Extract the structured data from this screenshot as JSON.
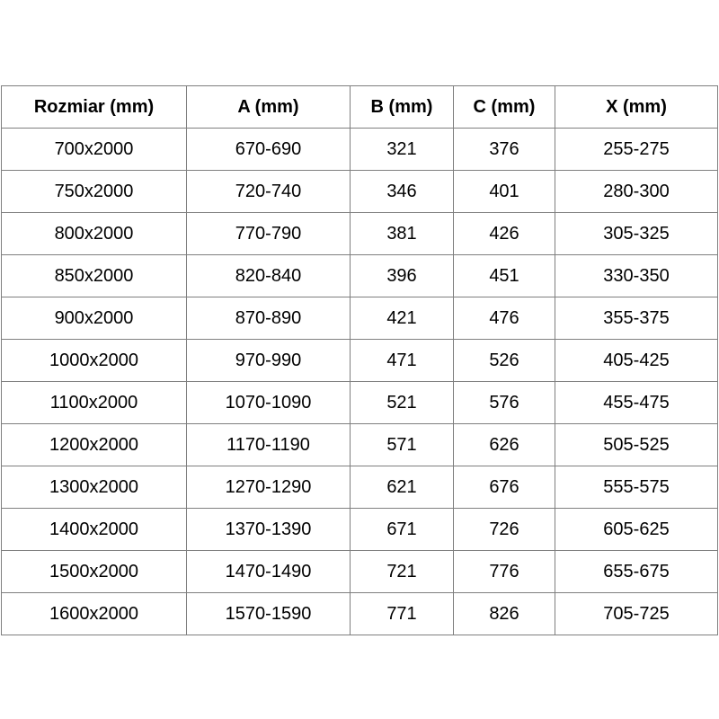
{
  "table": {
    "columns": [
      "Rozmiar (mm)",
      "A (mm)",
      "B (mm)",
      "C (mm)",
      "X (mm)"
    ],
    "rows": [
      [
        "700x2000",
        "670-690",
        "321",
        "376",
        "255-275"
      ],
      [
        "750x2000",
        "720-740",
        "346",
        "401",
        "280-300"
      ],
      [
        "800x2000",
        "770-790",
        "381",
        "426",
        "305-325"
      ],
      [
        "850x2000",
        "820-840",
        "396",
        "451",
        "330-350"
      ],
      [
        "900x2000",
        "870-890",
        "421",
        "476",
        "355-375"
      ],
      [
        "1000x2000",
        "970-990",
        "471",
        "526",
        "405-425"
      ],
      [
        "1100x2000",
        "1070-1090",
        "521",
        "576",
        "455-475"
      ],
      [
        "1200x2000",
        "1170-1190",
        "571",
        "626",
        "505-525"
      ],
      [
        "1300x2000",
        "1270-1290",
        "621",
        "676",
        "555-575"
      ],
      [
        "1400x2000",
        "1370-1390",
        "671",
        "726",
        "605-625"
      ],
      [
        "1500x2000",
        "1470-1490",
        "721",
        "776",
        "655-675"
      ],
      [
        "1600x2000",
        "1570-1590",
        "771",
        "826",
        "705-725"
      ]
    ],
    "colors": {
      "border": "#7f7f7f",
      "text": "#000000",
      "background": "#ffffff"
    }
  }
}
